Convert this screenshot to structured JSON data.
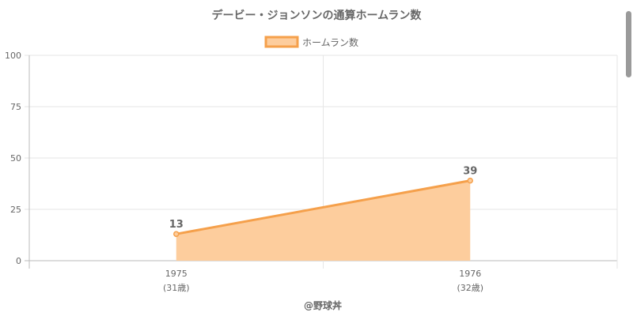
{
  "chart_data": {
    "type": "area",
    "title": "デービー・ジョンソンの通算ホームラン数",
    "legend": {
      "label": "ホームラン数",
      "position": "top"
    },
    "categories": [
      "1975",
      "1976"
    ],
    "category_sublabels": [
      "(31歳)",
      "(32歳)"
    ],
    "series": [
      {
        "name": "ホームラン数",
        "values": [
          13,
          39
        ]
      }
    ],
    "data_labels": [
      "13",
      "39"
    ],
    "ylim": [
      0,
      100
    ],
    "y_ticks": [
      "0",
      "25",
      "50",
      "75",
      "100"
    ],
    "grid": true,
    "colors": {
      "line": "#f5a04b",
      "fill": "#fdcd9d",
      "grid": "#e6e6e6",
      "axis": "#bbbbbb"
    }
  },
  "credit": "@野球丼"
}
